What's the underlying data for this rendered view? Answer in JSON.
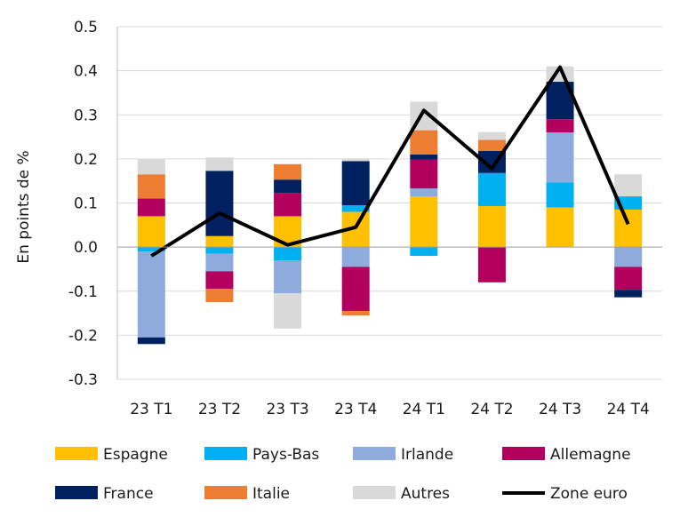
{
  "chart_data": {
    "type": "bar",
    "stacked": true,
    "ylabel": "En points de %",
    "xlabel": "",
    "ylim": [
      -0.3,
      0.5
    ],
    "yticks": [
      0.5,
      0.4,
      0.3,
      0.2,
      0.1,
      0.0,
      -0.1,
      -0.2,
      -0.3
    ],
    "ytick_labels": [
      "0.5",
      "0.4",
      "0.3",
      "0.2",
      "0.1",
      "0.0",
      "-0.1",
      "-0.2",
      "-0.3"
    ],
    "grid": true,
    "legend_position": "bottom",
    "categories": [
      "23 T1",
      "23 T2",
      "23 T3",
      "23 T4",
      "24 T1",
      "24 T2",
      "24 T3",
      "24 T4"
    ],
    "series": [
      {
        "name": "Espagne",
        "color": "#ffc000",
        "values": [
          0.07,
          0.025,
          0.07,
          0.08,
          0.115,
          0.093,
          0.09,
          0.085
        ]
      },
      {
        "name": "Pays-Bas",
        "color": "#00b0f0",
        "values": [
          -0.01,
          -0.015,
          -0.03,
          0.015,
          -0.02,
          0.075,
          0.057,
          0.03
        ]
      },
      {
        "name": "Irlande",
        "color": "#8faadc",
        "values": [
          -0.195,
          -0.04,
          -0.075,
          -0.045,
          0.018,
          0.0,
          0.113,
          -0.045
        ]
      },
      {
        "name": "Allemagne",
        "color": "#b3005f",
        "values": [
          0.04,
          -0.04,
          0.053,
          -0.1,
          0.065,
          -0.08,
          0.03,
          -0.052
        ]
      },
      {
        "name": "France",
        "color": "#002060",
        "values": [
          -0.015,
          0.148,
          0.03,
          0.1,
          0.012,
          0.05,
          0.085,
          -0.017
        ]
      },
      {
        "name": "Italie",
        "color": "#ed7d31",
        "values": [
          0.055,
          -0.03,
          0.035,
          -0.01,
          0.055,
          0.025,
          0.0,
          0.0
        ]
      },
      {
        "name": "Autres",
        "color": "#d9d9d9",
        "values": [
          0.035,
          0.03,
          -0.08,
          0.005,
          0.065,
          0.018,
          0.035,
          0.05
        ]
      }
    ],
    "line_series": {
      "name": "Zone euro",
      "color": "#000000",
      "values": [
        -0.02,
        0.077,
        0.005,
        0.045,
        0.31,
        0.178,
        0.408,
        0.052
      ]
    }
  }
}
